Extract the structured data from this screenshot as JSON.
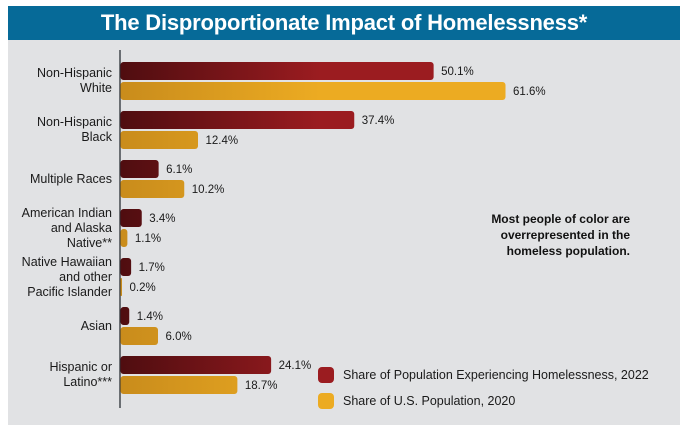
{
  "chart_data": {
    "type": "bar",
    "orientation": "horizontal",
    "title": "The Disproportionate Impact of Homelessness*",
    "categories": [
      "Non-Hispanic White",
      "Non-Hispanic Black",
      "Multiple Races",
      "American Indian and Alaska Native**",
      "Native Hawaiian and other Pacific Islander",
      "Asian",
      "Hispanic or Latino***"
    ],
    "category_lines": [
      [
        "Non-Hispanic",
        "White"
      ],
      [
        "Non-Hispanic",
        "Black"
      ],
      [
        "Multiple Races"
      ],
      [
        "American Indian",
        "and Alaska",
        "Native**"
      ],
      [
        "Native Hawaiian",
        "and other",
        "Pacific Islander"
      ],
      [
        "Asian"
      ],
      [
        "Hispanic or",
        "Latino***"
      ]
    ],
    "series": [
      {
        "name": "Share of Population Experiencing Homelessness, 2022",
        "color": "#9b1c20",
        "gradient_start": "#4f0d10",
        "values": [
          50.1,
          37.4,
          6.1,
          3.4,
          1.7,
          1.4,
          24.1
        ],
        "labels": [
          "50.1%",
          "37.4%",
          "6.1%",
          "3.4%",
          "1.7%",
          "1.4%",
          "24.1%"
        ]
      },
      {
        "name": "Share of U.S. Population, 2020",
        "color": "#ecab22",
        "gradient_start": "#c98c1c",
        "values": [
          61.6,
          12.4,
          10.2,
          1.1,
          0.2,
          6.0,
          18.7
        ],
        "labels": [
          "61.6%",
          "12.4%",
          "10.2%",
          "1.1%",
          "0.2%",
          "6.0%",
          "18.7%"
        ]
      }
    ],
    "xlabel": "",
    "ylabel": "",
    "xlim": [
      0,
      65
    ],
    "grid": false,
    "legend_position": "bottom-right",
    "annotation": "Most people of color are overrepresented in the homeless population."
  },
  "colors": {
    "title_band": "#066a98",
    "background": "#e1e2e4"
  }
}
